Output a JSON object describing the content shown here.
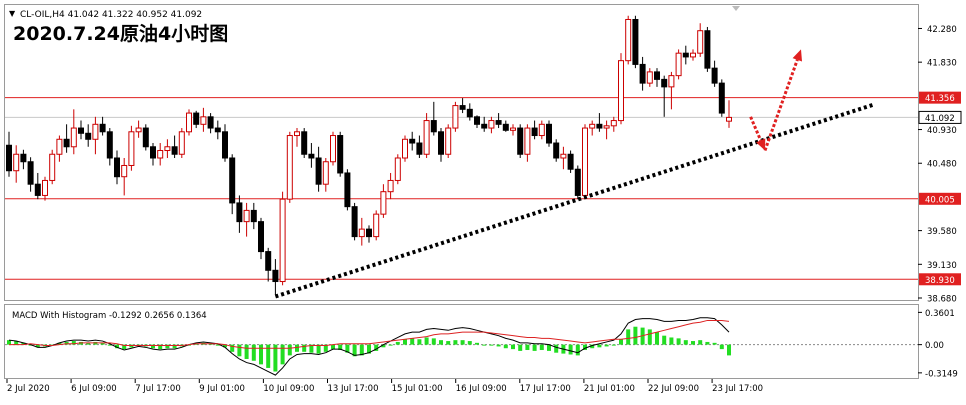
{
  "header": {
    "symbol_line": "CL-OIL,H4  41.042 41.322 40.952 41.092",
    "title": "2020.7.24原油4小时图"
  },
  "macd": {
    "label": "MACD With Histogram -0.1292 0.2656 0.1364"
  },
  "colors": {
    "background": "#ffffff",
    "frame": "#9a9a9a",
    "bull_candle_outline": "#cc0000",
    "bear_candle_fill": "#000000",
    "level_line": "#e02020",
    "trend_line": "#000000",
    "arrow": "#e02020",
    "histogram": "#22dd22",
    "macd_line": "#000000",
    "signal_line": "#dd2222",
    "price_tag_bg": "#e02020",
    "current_tag_bg": "#ffffff"
  },
  "chart_data": {
    "type": "candlestick",
    "symbol": "CL-OIL",
    "timeframe": "H4",
    "title": "2020.7.24原油4小时图",
    "ohlc_last": {
      "open": 41.042,
      "high": 41.322,
      "low": 40.952,
      "close": 41.092
    },
    "price_axis": {
      "range": [
        38.68,
        42.5
      ],
      "ticks": [
        "42.280",
        "41.830",
        "40.930",
        "40.480",
        "39.580",
        "39.130",
        "38.680"
      ]
    },
    "horizontal_levels": [
      {
        "label": "41.356",
        "value": 41.356
      },
      {
        "label": "40.005",
        "value": 40.005
      },
      {
        "label": "38.930",
        "value": 38.93
      }
    ],
    "current_price": {
      "label": "41.092",
      "value": 41.092
    },
    "x_tick_labels": [
      "2 Jul 2020",
      "6 Jul 09:00",
      "7 Jul 17:00",
      "9 Jul 01:00",
      "10 Jul 09:00",
      "13 Jul 17:00",
      "15 Jul 01:00",
      "16 Jul 09:00",
      "17 Jul 17:00",
      "21 Jul 01:00",
      "22 Jul 09:00",
      "23 Jul 17:00"
    ],
    "candles": [
      [
        40.72,
        40.9,
        40.3,
        40.38
      ],
      [
        40.38,
        40.72,
        40.22,
        40.6
      ],
      [
        40.6,
        40.66,
        40.4,
        40.5
      ],
      [
        40.5,
        40.56,
        40.1,
        40.2
      ],
      [
        40.2,
        40.35,
        40.0,
        40.05
      ],
      [
        40.05,
        40.3,
        39.98,
        40.25
      ],
      [
        40.25,
        40.66,
        40.2,
        40.6
      ],
      [
        40.6,
        40.85,
        40.5,
        40.8
      ],
      [
        40.8,
        41.0,
        40.62,
        40.7
      ],
      [
        40.7,
        41.2,
        40.6,
        40.95
      ],
      [
        40.95,
        41.05,
        40.8,
        40.88
      ],
      [
        40.88,
        41.0,
        40.7,
        40.8
      ],
      [
        40.8,
        41.1,
        40.6,
        41.0
      ],
      [
        41.0,
        41.1,
        40.85,
        40.9
      ],
      [
        40.9,
        40.95,
        40.45,
        40.55
      ],
      [
        40.55,
        40.65,
        40.2,
        40.3
      ],
      [
        40.3,
        40.55,
        40.05,
        40.45
      ],
      [
        40.45,
        40.98,
        40.38,
        40.9
      ],
      [
        40.9,
        41.05,
        40.82,
        40.95
      ],
      [
        40.95,
        41.0,
        40.65,
        40.7
      ],
      [
        40.7,
        40.75,
        40.45,
        40.55
      ],
      [
        40.55,
        40.75,
        40.45,
        40.65
      ],
      [
        40.65,
        40.8,
        40.55,
        40.7
      ],
      [
        40.7,
        40.85,
        40.55,
        40.6
      ],
      [
        40.6,
        40.95,
        40.55,
        40.9
      ],
      [
        40.9,
        41.2,
        40.85,
        41.15
      ],
      [
        41.15,
        41.18,
        40.95,
        41.0
      ],
      [
        41.0,
        41.22,
        40.9,
        41.1
      ],
      [
        41.1,
        41.15,
        40.88,
        40.95
      ],
      [
        40.95,
        41.05,
        40.8,
        40.9
      ],
      [
        40.9,
        41.0,
        40.5,
        40.55
      ],
      [
        40.55,
        40.6,
        39.8,
        39.95
      ],
      [
        39.95,
        40.05,
        39.55,
        39.7
      ],
      [
        39.7,
        39.95,
        39.5,
        39.85
      ],
      [
        39.85,
        39.95,
        39.6,
        39.7
      ],
      [
        39.7,
        39.75,
        39.2,
        39.3
      ],
      [
        39.3,
        39.35,
        38.9,
        39.05
      ],
      [
        39.05,
        39.2,
        38.72,
        38.9
      ],
      [
        38.9,
        40.1,
        38.85,
        40.0
      ],
      [
        40.0,
        40.9,
        39.95,
        40.85
      ],
      [
        40.85,
        40.95,
        40.7,
        40.9
      ],
      [
        40.9,
        40.95,
        40.55,
        40.6
      ],
      [
        40.6,
        40.75,
        40.42,
        40.55
      ],
      [
        40.55,
        40.7,
        40.1,
        40.2
      ],
      [
        40.2,
        40.55,
        40.1,
        40.5
      ],
      [
        40.5,
        40.9,
        40.45,
        40.85
      ],
      [
        40.85,
        40.9,
        40.3,
        40.35
      ],
      [
        40.35,
        40.4,
        39.85,
        39.9
      ],
      [
        39.9,
        39.95,
        39.45,
        39.5
      ],
      [
        39.5,
        39.75,
        39.38,
        39.6
      ],
      [
        39.6,
        39.65,
        39.42,
        39.5
      ],
      [
        39.5,
        39.85,
        39.45,
        39.8
      ],
      [
        39.8,
        40.2,
        39.75,
        40.1
      ],
      [
        40.1,
        40.35,
        40.0,
        40.25
      ],
      [
        40.25,
        40.6,
        40.2,
        40.55
      ],
      [
        40.55,
        40.85,
        40.5,
        40.8
      ],
      [
        40.8,
        40.9,
        40.65,
        40.75
      ],
      [
        40.75,
        40.85,
        40.55,
        40.6
      ],
      [
        40.6,
        41.15,
        40.55,
        41.05
      ],
      [
        41.05,
        41.3,
        40.85,
        40.9
      ],
      [
        40.9,
        40.95,
        40.5,
        40.6
      ],
      [
        40.6,
        41.0,
        40.55,
        40.95
      ],
      [
        40.95,
        41.3,
        40.9,
        41.25
      ],
      [
        41.25,
        41.35,
        41.15,
        41.2
      ],
      [
        41.2,
        41.28,
        41.05,
        41.1
      ],
      [
        41.1,
        41.12,
        40.95,
        41.0
      ],
      [
        41.0,
        41.1,
        40.9,
        40.95
      ],
      [
        40.95,
        41.1,
        40.88,
        41.05
      ],
      [
        41.05,
        41.15,
        40.95,
        41.0
      ],
      [
        41.0,
        41.05,
        40.9,
        40.92
      ],
      [
        40.92,
        41.0,
        40.85,
        40.95
      ],
      [
        40.95,
        41.0,
        40.55,
        40.6
      ],
      [
        40.6,
        41.0,
        40.5,
        40.95
      ],
      [
        40.95,
        41.05,
        40.8,
        40.85
      ],
      [
        40.85,
        41.05,
        40.8,
        41.0
      ],
      [
        41.0,
        41.05,
        40.7,
        40.75
      ],
      [
        40.75,
        40.8,
        40.5,
        40.55
      ],
      [
        40.55,
        40.7,
        40.4,
        40.6
      ],
      [
        40.6,
        40.65,
        40.35,
        40.4
      ],
      [
        40.4,
        40.45,
        40.0,
        40.05
      ],
      [
        40.05,
        41.0,
        40.0,
        40.95
      ],
      [
        40.95,
        41.05,
        40.85,
        41.0
      ],
      [
        41.0,
        41.15,
        40.9,
        40.95
      ],
      [
        40.95,
        41.05,
        40.8,
        40.98
      ],
      [
        40.98,
        41.1,
        40.9,
        41.05
      ],
      [
        41.05,
        41.95,
        41.0,
        41.85
      ],
      [
        41.85,
        42.45,
        41.8,
        42.4
      ],
      [
        42.4,
        42.45,
        41.75,
        41.8
      ],
      [
        41.8,
        41.9,
        41.45,
        41.55
      ],
      [
        41.55,
        41.75,
        41.5,
        41.7
      ],
      [
        41.7,
        41.75,
        41.5,
        41.6
      ],
      [
        41.6,
        41.65,
        41.1,
        41.5
      ],
      [
        41.5,
        41.7,
        41.2,
        41.65
      ],
      [
        41.65,
        42.0,
        41.6,
        41.95
      ],
      [
        41.95,
        42.05,
        41.8,
        41.9
      ],
      [
        41.9,
        42.0,
        41.85,
        41.95
      ],
      [
        41.95,
        42.35,
        41.9,
        42.25
      ],
      [
        42.25,
        42.3,
        41.7,
        41.75
      ],
      [
        41.75,
        41.85,
        41.5,
        41.55
      ],
      [
        41.55,
        41.6,
        41.1,
        41.15
      ],
      [
        41.042,
        41.322,
        40.952,
        41.092
      ]
    ],
    "macd": {
      "label": "MACD With Histogram -0.1292 0.2656 0.1364",
      "axis_ticks": [
        "0.3601",
        "0.00",
        "-0.3149"
      ],
      "range": [
        -0.35,
        0.42
      ],
      "histogram": [
        0.05,
        0.04,
        0.02,
        -0.01,
        -0.03,
        -0.02,
        0.0,
        0.02,
        0.03,
        0.04,
        0.03,
        0.02,
        0.03,
        0.02,
        -0.01,
        -0.04,
        -0.05,
        -0.03,
        -0.01,
        -0.02,
        -0.04,
        -0.05,
        -0.04,
        -0.04,
        -0.02,
        0.0,
        0.01,
        0.02,
        0.01,
        0.0,
        -0.03,
        -0.08,
        -0.13,
        -0.16,
        -0.18,
        -0.22,
        -0.26,
        -0.3,
        -0.22,
        -0.12,
        -0.08,
        -0.08,
        -0.09,
        -0.1,
        -0.08,
        -0.05,
        -0.06,
        -0.09,
        -0.13,
        -0.12,
        -0.1,
        -0.07,
        -0.03,
        0.0,
        0.03,
        0.06,
        0.07,
        0.06,
        0.08,
        0.07,
        0.05,
        0.04,
        0.05,
        0.05,
        0.04,
        0.02,
        0.0,
        -0.01,
        -0.02,
        -0.04,
        -0.05,
        -0.07,
        -0.06,
        -0.07,
        -0.06,
        -0.07,
        -0.09,
        -0.1,
        -0.11,
        -0.12,
        -0.06,
        -0.04,
        -0.03,
        -0.02,
        -0.01,
        0.06,
        0.17,
        0.2,
        0.19,
        0.17,
        0.14,
        0.1,
        0.08,
        0.07,
        0.05,
        0.04,
        0.05,
        0.03,
        0.02,
        -0.05,
        -0.12
      ],
      "macd_line": [
        0.05,
        0.04,
        0.02,
        0.0,
        -0.03,
        -0.03,
        -0.01,
        0.02,
        0.04,
        0.05,
        0.05,
        0.04,
        0.05,
        0.04,
        0.01,
        -0.03,
        -0.06,
        -0.04,
        -0.02,
        -0.03,
        -0.05,
        -0.06,
        -0.05,
        -0.05,
        -0.03,
        0.0,
        0.02,
        0.03,
        0.02,
        0.01,
        -0.03,
        -0.1,
        -0.16,
        -0.2,
        -0.22,
        -0.26,
        -0.3,
        -0.34,
        -0.26,
        -0.16,
        -0.11,
        -0.1,
        -0.1,
        -0.11,
        -0.09,
        -0.05,
        -0.05,
        -0.08,
        -0.12,
        -0.11,
        -0.09,
        -0.05,
        0.0,
        0.04,
        0.08,
        0.12,
        0.14,
        0.14,
        0.17,
        0.18,
        0.17,
        0.16,
        0.18,
        0.19,
        0.18,
        0.16,
        0.14,
        0.12,
        0.1,
        0.07,
        0.05,
        0.02,
        0.02,
        0.01,
        0.01,
        0.0,
        -0.03,
        -0.05,
        -0.07,
        -0.09,
        -0.04,
        -0.01,
        0.01,
        0.03,
        0.05,
        0.12,
        0.24,
        0.28,
        0.29,
        0.29,
        0.28,
        0.26,
        0.26,
        0.27,
        0.27,
        0.28,
        0.3,
        0.3,
        0.29,
        0.22,
        0.14
      ],
      "signal_line": [
        0.0,
        0.0,
        0.0,
        0.01,
        0.0,
        -0.01,
        -0.01,
        0.0,
        0.01,
        0.01,
        0.02,
        0.02,
        0.02,
        0.02,
        0.02,
        0.01,
        -0.01,
        -0.01,
        -0.01,
        -0.01,
        -0.01,
        -0.01,
        -0.01,
        -0.01,
        -0.01,
        0.0,
        0.01,
        0.01,
        0.01,
        0.01,
        0.0,
        -0.02,
        -0.03,
        -0.04,
        -0.04,
        -0.04,
        -0.04,
        -0.04,
        -0.04,
        -0.04,
        -0.03,
        -0.02,
        -0.01,
        -0.01,
        -0.01,
        0.0,
        0.01,
        0.01,
        0.01,
        0.01,
        0.01,
        0.02,
        0.03,
        0.04,
        0.05,
        0.06,
        0.07,
        0.08,
        0.09,
        0.11,
        0.12,
        0.12,
        0.13,
        0.14,
        0.14,
        0.14,
        0.14,
        0.13,
        0.12,
        0.11,
        0.1,
        0.09,
        0.08,
        0.08,
        0.07,
        0.07,
        0.06,
        0.05,
        0.04,
        0.03,
        0.02,
        0.03,
        0.04,
        0.05,
        0.06,
        0.06,
        0.07,
        0.08,
        0.1,
        0.12,
        0.14,
        0.16,
        0.18,
        0.2,
        0.22,
        0.24,
        0.25,
        0.27,
        0.27,
        0.27,
        0.26
      ]
    },
    "annotations": [
      {
        "kind": "dotted-trend-line",
        "from": {
          "bar": 37,
          "price": 38.7
        },
        "to": {
          "bar": 120,
          "price": 41.26
        }
      },
      {
        "kind": "dotted-arrow",
        "from": {
          "bar": 103,
          "price": 41.1
        },
        "to": {
          "bar": 105,
          "price": 40.65
        }
      },
      {
        "kind": "dotted-arrow",
        "from": {
          "bar": 105,
          "price": 40.65
        },
        "to": {
          "bar": 110,
          "price": 42.0
        }
      }
    ]
  }
}
